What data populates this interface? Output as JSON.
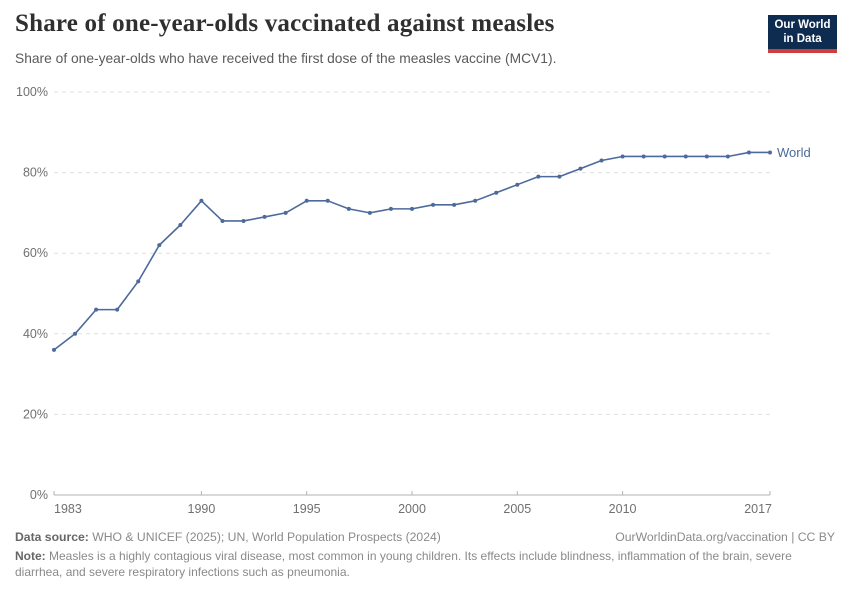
{
  "header": {
    "title": "Share of one-year-olds vaccinated against measles",
    "subtitle": "Share of one-year-olds who have received the first dose of the measles vaccine (MCV1).",
    "logo": {
      "line1": "Our World",
      "line2": "in Data",
      "bg_color": "#0e2c50",
      "accent_color": "#ce3e3e"
    }
  },
  "chart_data": {
    "type": "line",
    "title": "Share of one-year-olds vaccinated against measles",
    "xlabel": "",
    "ylabel": "",
    "xlim": [
      1983,
      2017
    ],
    "ylim": [
      0,
      100
    ],
    "grid": "horizontal-dashed",
    "legend_position": "end-of-line",
    "x_ticks": [
      1983,
      1990,
      1995,
      2000,
      2005,
      2010,
      2017
    ],
    "y_ticks": [
      "0%",
      "20%",
      "40%",
      "60%",
      "80%",
      "100%"
    ],
    "series": [
      {
        "name": "World",
        "color": "#4c6a9c",
        "x": [
          1983,
          1984,
          1985,
          1986,
          1987,
          1988,
          1989,
          1990,
          1991,
          1992,
          1993,
          1994,
          1995,
          1996,
          1997,
          1998,
          1999,
          2000,
          2001,
          2002,
          2003,
          2004,
          2005,
          2006,
          2007,
          2008,
          2009,
          2010,
          2011,
          2012,
          2013,
          2014,
          2015,
          2016,
          2017
        ],
        "values": [
          36,
          40,
          46,
          46,
          53,
          62,
          67,
          73,
          68,
          68,
          69,
          70,
          73,
          73,
          71,
          70,
          71,
          71,
          72,
          72,
          73,
          75,
          77,
          79,
          79,
          81,
          83,
          84,
          84,
          84,
          84,
          84,
          84,
          85,
          85
        ]
      }
    ]
  },
  "footer": {
    "datasource_label": "Data source:",
    "datasource": " WHO & UNICEF (2025); UN, World Population Prospects (2024)",
    "link": "OurWorldinData.org/vaccination | CC BY",
    "note_label": "Note:",
    "note": " Measles is a highly contagious viral disease, most common in young children. Its effects include blindness, inflammation of the brain, severe diarrhea, and severe respiratory infections such as pneumonia."
  },
  "colors": {
    "line": "#4c6a9c",
    "grid": "#dfdfdf",
    "axis": "#b3b3b3",
    "axis_text": "#707070"
  }
}
